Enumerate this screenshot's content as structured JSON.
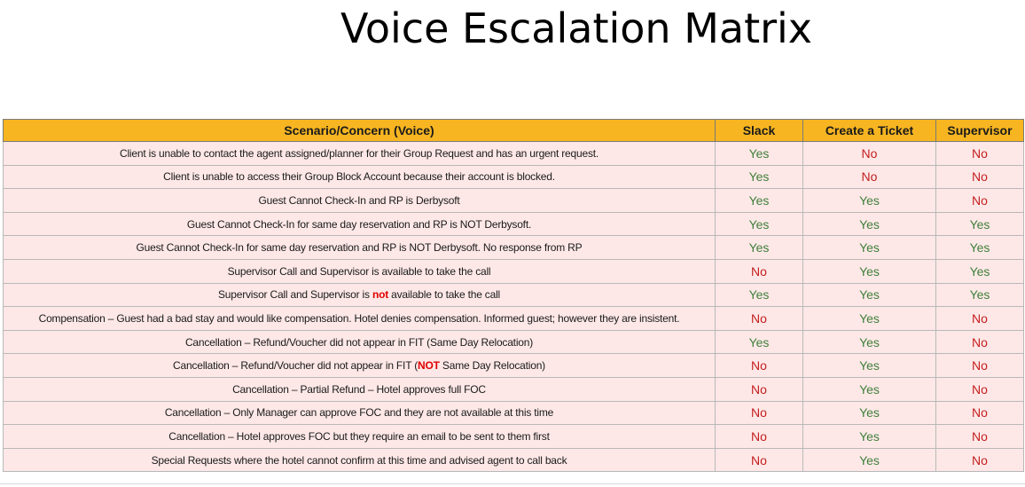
{
  "title": "Voice Escalation Matrix",
  "table": {
    "headers": [
      "Scenario/Concern (Voice)",
      "Slack",
      "Create a Ticket",
      "Supervisor"
    ],
    "rows": [
      {
        "pre": "Client is unable to contact the agent assigned/planner for their Group Request and has an urgent request.",
        "emph": "",
        "post": "",
        "slack": "Yes",
        "ticket": "No",
        "supervisor": "No"
      },
      {
        "pre": "Client is unable to access their Group Block Account because their account is blocked.",
        "emph": "",
        "post": "",
        "slack": "Yes",
        "ticket": "No",
        "supervisor": "No"
      },
      {
        "pre": "Guest Cannot Check-In and RP is Derbysoft",
        "emph": "",
        "post": "",
        "slack": "Yes",
        "ticket": "Yes",
        "supervisor": "No"
      },
      {
        "pre": "Guest Cannot Check-In for same day reservation and RP is NOT Derbysoft.",
        "emph": "",
        "post": "",
        "slack": "Yes",
        "ticket": "Yes",
        "supervisor": "Yes"
      },
      {
        "pre": "Guest Cannot Check-In for same day reservation and RP is NOT Derbysoft. No response from RP",
        "emph": "",
        "post": "",
        "slack": "Yes",
        "ticket": "Yes",
        "supervisor": "Yes"
      },
      {
        "pre": "Supervisor Call and Supervisor is available to take the call",
        "emph": "",
        "post": "",
        "slack": "No",
        "ticket": "Yes",
        "supervisor": "Yes"
      },
      {
        "pre": "Supervisor Call and Supervisor is ",
        "emph": "not",
        "post": " available to take the call",
        "slack": "Yes",
        "ticket": "Yes",
        "supervisor": "Yes"
      },
      {
        "pre": "Compensation – Guest had a bad stay and would like compensation. Hotel denies compensation. Informed guest; however they are insistent.",
        "emph": "",
        "post": "",
        "slack": "No",
        "ticket": "Yes",
        "supervisor": "No"
      },
      {
        "pre": "Cancellation – Refund/Voucher did not appear in FIT (Same Day Relocation)",
        "emph": "",
        "post": "",
        "slack": "Yes",
        "ticket": "Yes",
        "supervisor": "No"
      },
      {
        "pre": "Cancellation – Refund/Voucher did not appear in FIT (",
        "emph": "NOT",
        "post": " Same Day Relocation)",
        "slack": "No",
        "ticket": "Yes",
        "supervisor": "No"
      },
      {
        "pre": "Cancellation – Partial Refund – Hotel approves full FOC",
        "emph": "",
        "post": "",
        "slack": "No",
        "ticket": "Yes",
        "supervisor": "No"
      },
      {
        "pre": "Cancellation – Only Manager can approve FOC and they are not available at this time",
        "emph": "",
        "post": "",
        "slack": "No",
        "ticket": "Yes",
        "supervisor": "No"
      },
      {
        "pre": "Cancellation – Hotel approves FOC but they require an email to be sent to them first",
        "emph": "",
        "post": "",
        "slack": "No",
        "ticket": "Yes",
        "supervisor": "No"
      },
      {
        "pre": "Special Requests where the hotel cannot confirm at this time and advised agent to call back",
        "emph": "",
        "post": "",
        "slack": "No",
        "ticket": "Yes",
        "supervisor": "No"
      }
    ]
  },
  "colors": {
    "header_bg": "#f7b521",
    "row_bg": "#fde8e7",
    "yes": "#3f7f3a",
    "no": "#c41e1e",
    "emphasis": "#e00000"
  }
}
